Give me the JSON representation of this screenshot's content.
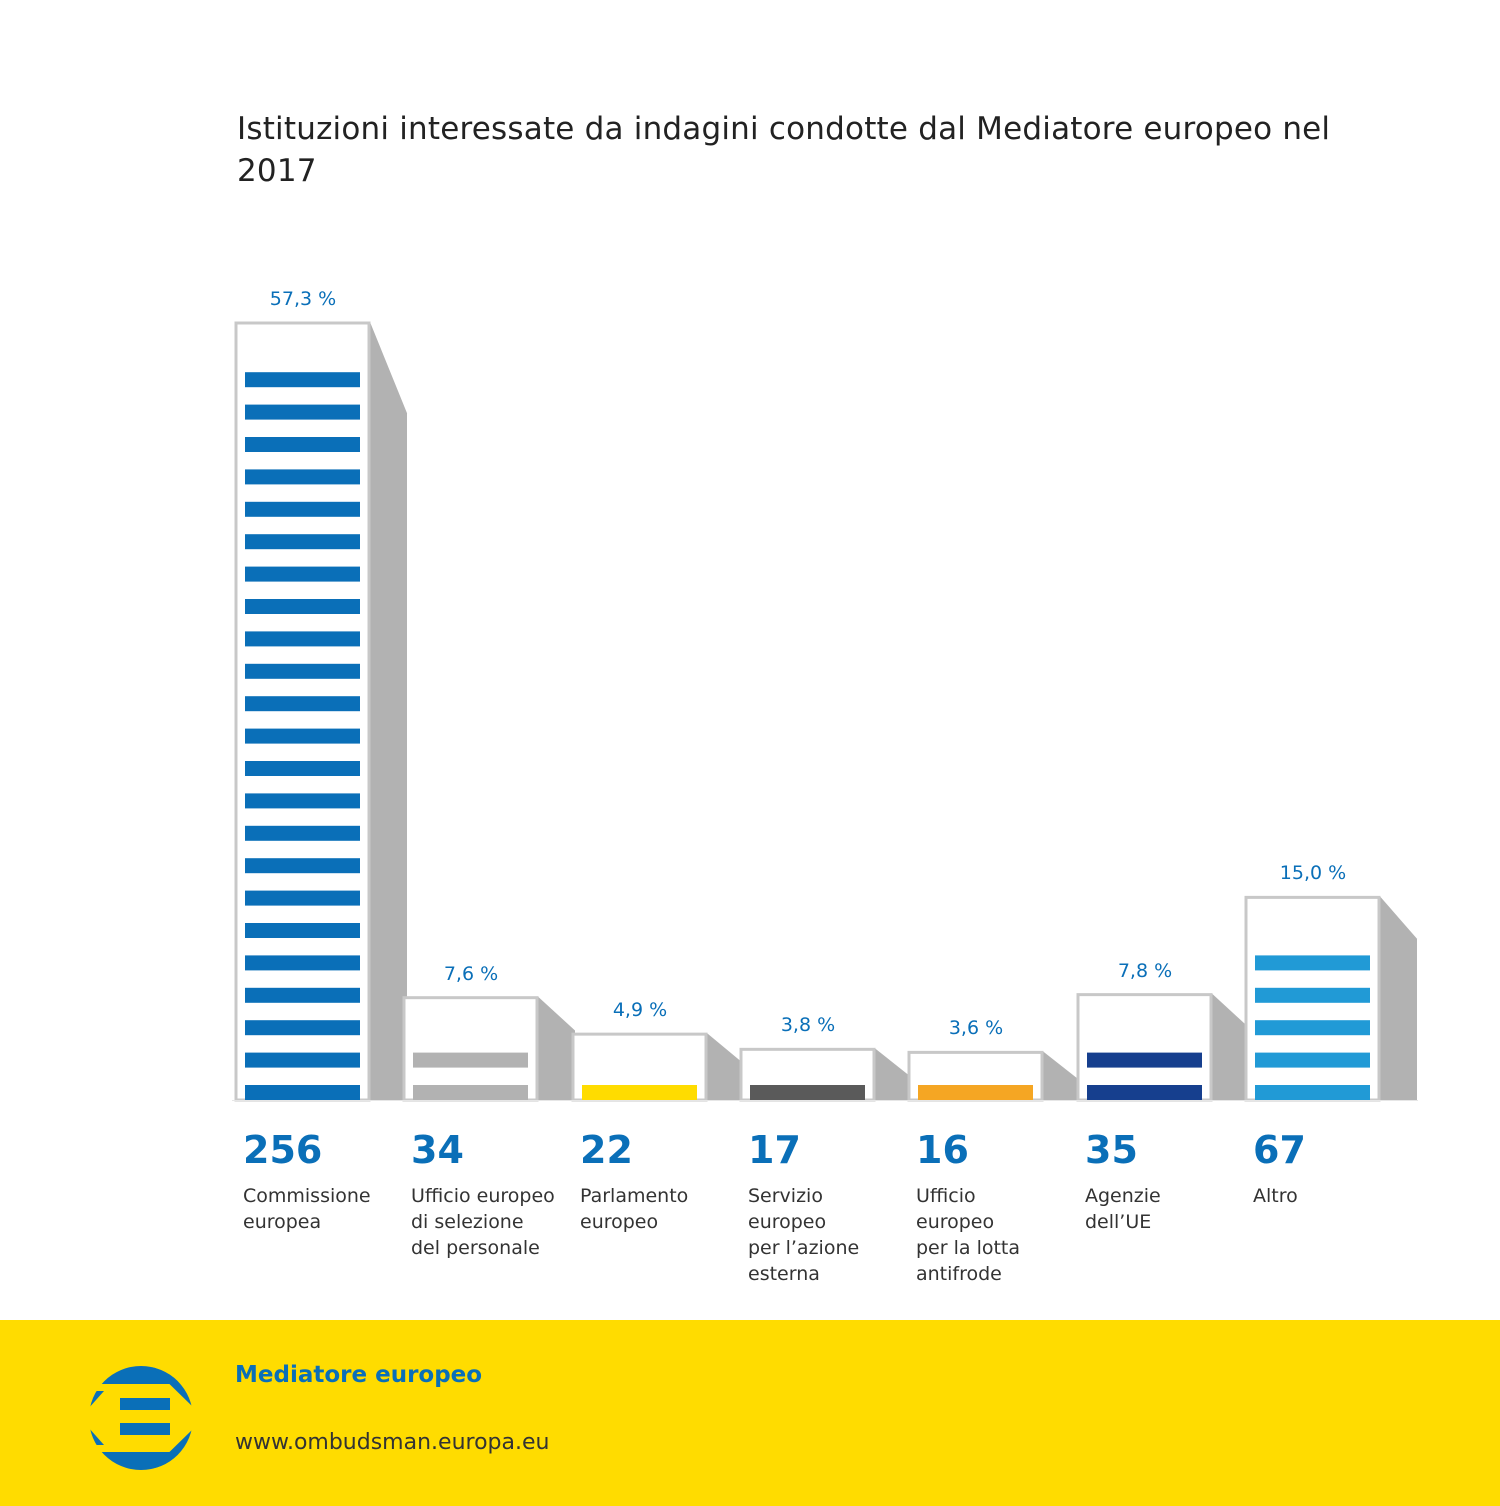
{
  "title": "Istituzioni interessate da indagini condotte dal Mediatore europeo nel 2017",
  "chart_data": {
    "type": "bar",
    "title": "Istituzioni interessate da indagini condotte dal Mediatore europeo nel 2017",
    "xlabel": "",
    "ylabel": "",
    "categories": [
      "Commissione europea",
      "Ufficio europeo di selezione del personale",
      "Parlamento europeo",
      "Servizio europeo per l’azione esterna",
      "Ufficio europeo per la lotta antifrode",
      "Agenzie dell’UE",
      "Altro"
    ],
    "values": [
      256,
      34,
      22,
      17,
      16,
      35,
      67
    ],
    "percent_labels": [
      "57,3 %",
      "7,6 %",
      "4,9 %",
      "3,8 %",
      "3,6 %",
      "7,8 %",
      "15,0 %"
    ],
    "count_labels": [
      "256",
      "34",
      "22",
      "17",
      "16",
      "35",
      "67"
    ],
    "label_lines": [
      [
        "Commissione",
        "europea"
      ],
      [
        "Ufficio europeo",
        "di selezione",
        "del personale"
      ],
      [
        "Parlamento",
        "europeo"
      ],
      [
        "Servizio",
        "europeo",
        "per l’azione",
        "esterna"
      ],
      [
        "Ufficio",
        "europeo",
        "per la lotta",
        "antifrode"
      ],
      [
        "Agenzie",
        "dell’UE"
      ],
      [
        "Altro"
      ]
    ],
    "colors": [
      "#0a6fb8",
      "#b2b2b2",
      "#ffdc00",
      "#5a5a5a",
      "#f5a623",
      "#163f8e",
      "#219ad6"
    ],
    "grid": false
  },
  "footer": {
    "org": "Mediatore europeo",
    "url": "www.ombudsman.europa.eu"
  }
}
